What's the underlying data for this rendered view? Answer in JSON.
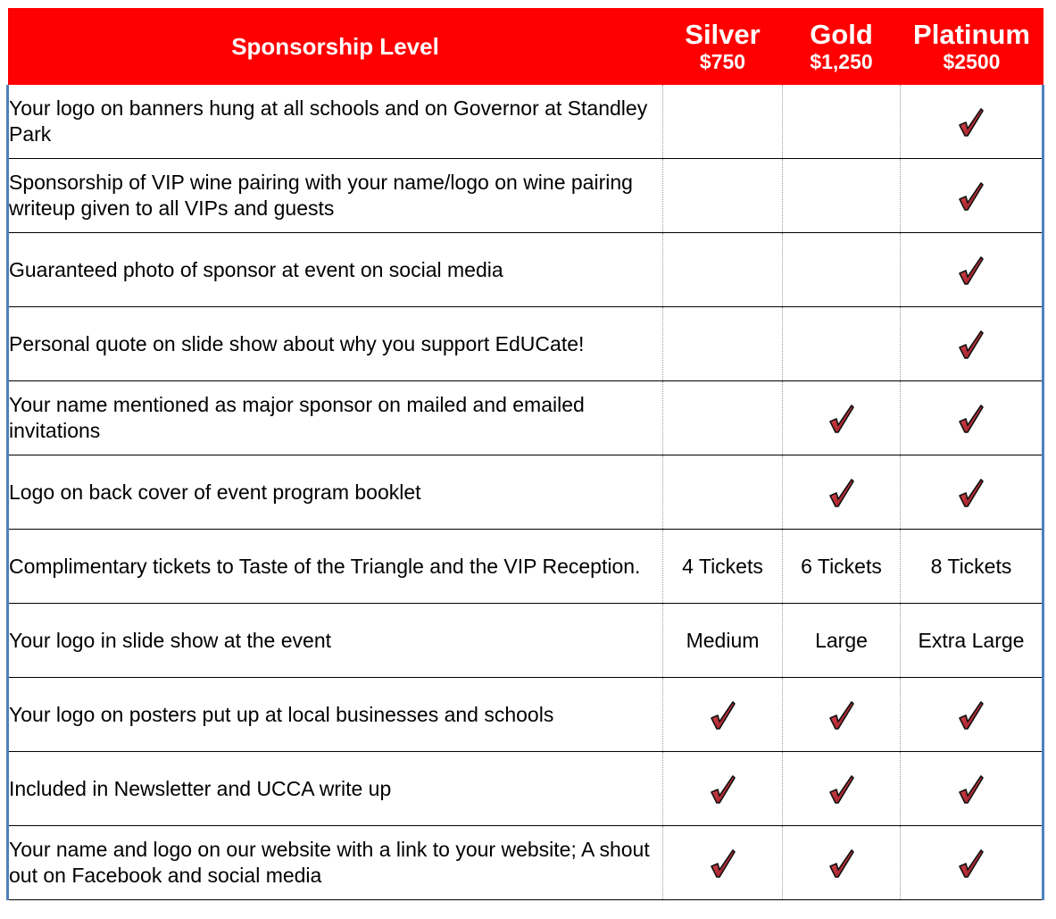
{
  "header": {
    "level_label": "Sponsorship Level",
    "tiers": [
      {
        "name": "Silver",
        "price": "$750"
      },
      {
        "name": "Gold",
        "price": "$1,250"
      },
      {
        "name": "Platinum",
        "price": "$2500"
      }
    ]
  },
  "colors": {
    "header_bg": "#ff0000",
    "check": "#c0202a",
    "border_accent": "#4f81bd"
  },
  "check_icon": "red-checkmark-icon",
  "rows": [
    {
      "feature": "Your logo on banners hung at all schools and on Governor at Standley Park",
      "values": [
        "",
        "",
        "✓"
      ]
    },
    {
      "feature": "Sponsorship of VIP wine pairing with your name/logo on wine pairing writeup given to all VIPs and guests",
      "values": [
        "",
        "",
        "✓"
      ]
    },
    {
      "feature": "Guaranteed photo of sponsor at event on social media",
      "values": [
        "",
        "",
        "✓"
      ]
    },
    {
      "feature": "Personal quote on slide show about why you support EdUCate!",
      "values": [
        "",
        "",
        "✓"
      ]
    },
    {
      "feature": "Your name mentioned as major sponsor on mailed and emailed invitations",
      "values": [
        "",
        "✓",
        "✓"
      ]
    },
    {
      "feature": "Logo on back cover of event program booklet",
      "values": [
        "",
        "✓",
        "✓"
      ]
    },
    {
      "feature": "Complimentary tickets to Taste of the Triangle and the VIP Reception.",
      "values": [
        "4 Tickets",
        "6 Tickets",
        "8 Tickets"
      ]
    },
    {
      "feature": "Your logo in slide show at the event",
      "values": [
        "Medium",
        "Large",
        "Extra Large"
      ]
    },
    {
      "feature": "Your logo on posters put up at local businesses and schools",
      "values": [
        "✓",
        "✓",
        "✓"
      ]
    },
    {
      "feature": "Included in Newsletter and UCCA write up",
      "values": [
        "✓",
        "✓",
        "✓"
      ]
    },
    {
      "feature": "Your name and logo on our website with a link to your website; A shout out on Facebook and social media",
      "values": [
        "✓",
        "✓",
        "✓"
      ]
    }
  ]
}
